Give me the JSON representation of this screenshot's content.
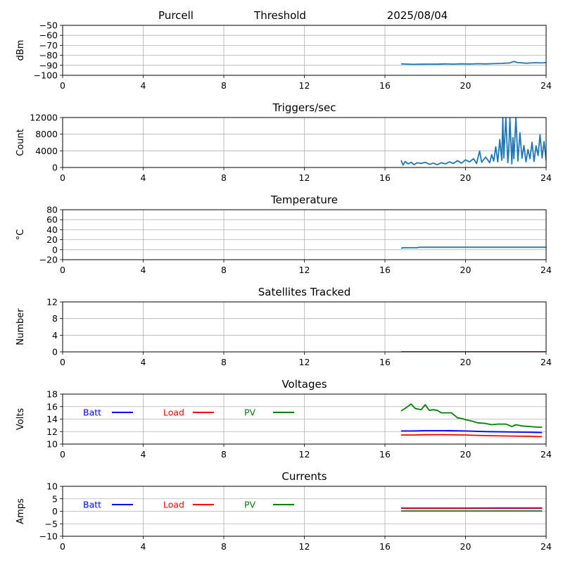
{
  "header": {
    "station": "Purcell",
    "mode": "Threshold",
    "date": "2025/08/04"
  },
  "chart_data": [
    {
      "id": "power",
      "type": "line",
      "title": "",
      "xlabel": "",
      "ylabel": "dBm",
      "xlim": [
        0,
        24
      ],
      "xticks": [
        "0",
        "4",
        "8",
        "12",
        "16",
        "20",
        "24"
      ],
      "ylim": [
        -100,
        -50
      ],
      "yticks": [
        "−100",
        "−90",
        "−80",
        "−70",
        "−60",
        "−50"
      ],
      "grid": true,
      "series": [
        {
          "color": "#1f77b4",
          "x": [
            16.8,
            17.0,
            17.4,
            17.8,
            18.2,
            18.6,
            19.0,
            19.4,
            19.8,
            20.2,
            20.6,
            21.0,
            21.4,
            21.8,
            22.2,
            22.4,
            22.6,
            22.8,
            23.0,
            23.4,
            23.8,
            24.0
          ],
          "y": [
            -88.5,
            -88.7,
            -89.0,
            -88.9,
            -88.8,
            -88.9,
            -88.6,
            -88.8,
            -88.5,
            -88.7,
            -88.4,
            -88.6,
            -88.3,
            -88.1,
            -87.6,
            -86.2,
            -87.3,
            -87.5,
            -87.9,
            -87.4,
            -87.6,
            -87.3
          ]
        }
      ]
    },
    {
      "id": "triggers",
      "type": "line",
      "title": "Triggers/sec",
      "xlabel": "",
      "ylabel": "Count",
      "xlim": [
        0,
        24
      ],
      "xticks": [
        "0",
        "4",
        "8",
        "12",
        "16",
        "20",
        "24"
      ],
      "ylim": [
        0,
        12500
      ],
      "yticks": [
        "0",
        "4000",
        "8000",
        "12000"
      ],
      "grid": true,
      "series": [
        {
          "color": "#1f77b4",
          "x": [
            16.8,
            16.9,
            17.0,
            17.15,
            17.3,
            17.45,
            17.6,
            17.8,
            18.0,
            18.2,
            18.4,
            18.6,
            18.8,
            19.0,
            19.2,
            19.4,
            19.6,
            19.8,
            20.0,
            20.2,
            20.4,
            20.55,
            20.7,
            20.8,
            21.0,
            21.2,
            21.3,
            21.4,
            21.5,
            21.6,
            21.7,
            21.8,
            21.85,
            21.9,
            22.0,
            22.1,
            22.15,
            22.2,
            22.3,
            22.35,
            22.4,
            22.5,
            22.6,
            22.7,
            22.8,
            22.9,
            23.0,
            23.1,
            23.2,
            23.3,
            23.4,
            23.5,
            23.6,
            23.7,
            23.8,
            23.9,
            24.0
          ],
          "y": [
            1800,
            600,
            1500,
            900,
            1300,
            700,
            1200,
            1000,
            1300,
            800,
            1100,
            700,
            1200,
            900,
            1400,
            1000,
            1700,
            1100,
            1900,
            1400,
            2200,
            1000,
            4100,
            1300,
            2600,
            1200,
            3200,
            1600,
            5200,
            1400,
            7000,
            1800,
            12500,
            2400,
            12500,
            1200,
            4200,
            12500,
            900,
            7500,
            2200,
            12500,
            1600,
            8700,
            2300,
            5500,
            1400,
            4500,
            2200,
            6300,
            1500,
            5400,
            3000,
            8200,
            2400,
            6500,
            1800
          ]
        }
      ]
    },
    {
      "id": "temperature",
      "type": "line",
      "title": "Temperature",
      "xlabel": "",
      "ylabel": "°C",
      "xlim": [
        0,
        24
      ],
      "xticks": [
        "0",
        "4",
        "8",
        "12",
        "16",
        "20",
        "24"
      ],
      "ylim": [
        -20,
        80
      ],
      "yticks": [
        "−20",
        "0",
        "20",
        "40",
        "60",
        "80"
      ],
      "grid": true,
      "series": [
        {
          "color": "#1f77b4",
          "x": [
            16.8,
            16.9,
            17.6,
            17.7,
            24.0
          ],
          "y": [
            3,
            4,
            4,
            5,
            5
          ]
        }
      ]
    },
    {
      "id": "satellites",
      "type": "line",
      "title": "Satellites Tracked",
      "xlabel": "",
      "ylabel": "Number",
      "xlim": [
        0,
        24
      ],
      "xticks": [
        "0",
        "4",
        "8",
        "12",
        "16",
        "20",
        "24"
      ],
      "ylim": [
        0,
        12
      ],
      "yticks": [
        "0",
        "4",
        "8",
        "12"
      ],
      "grid": true,
      "series": [
        {
          "color": "#1f77b4",
          "x": [
            16.8,
            24.0
          ],
          "y": [
            0,
            0
          ]
        },
        {
          "color": "#008000",
          "x": [
            16.8,
            24.0
          ],
          "y": [
            0,
            0
          ]
        }
      ]
    },
    {
      "id": "voltages",
      "type": "line",
      "title": "Voltages",
      "xlabel": "",
      "ylabel": "Volts",
      "xlim": [
        0,
        24
      ],
      "xticks": [
        "0",
        "4",
        "8",
        "12",
        "16",
        "20",
        "24"
      ],
      "ylim": [
        10,
        18
      ],
      "yticks": [
        "10",
        "12",
        "14",
        "16",
        "18"
      ],
      "grid": true,
      "legend": "top-left",
      "series": [
        {
          "name": "Batt",
          "color": "#0000ff",
          "x": [
            16.8,
            17.4,
            18.0,
            19.0,
            20.0,
            21.0,
            22.0,
            23.0,
            23.8
          ],
          "y": [
            12.1,
            12.1,
            12.15,
            12.15,
            12.1,
            12.0,
            11.95,
            11.9,
            11.85
          ]
        },
        {
          "name": "Load",
          "color": "#ff0000",
          "x": [
            16.8,
            17.4,
            18.0,
            19.0,
            20.0,
            21.0,
            22.0,
            23.0,
            23.8
          ],
          "y": [
            11.45,
            11.45,
            11.5,
            11.5,
            11.45,
            11.35,
            11.3,
            11.25,
            11.2
          ]
        },
        {
          "name": "PV",
          "color": "#008000",
          "x": [
            16.8,
            17.0,
            17.3,
            17.5,
            17.8,
            18.0,
            18.2,
            18.4,
            18.6,
            18.8,
            19.0,
            19.3,
            19.6,
            19.8,
            20.0,
            20.3,
            20.6,
            21.0,
            21.3,
            21.6,
            22.0,
            22.3,
            22.5,
            22.8,
            23.2,
            23.6,
            23.8
          ],
          "y": [
            15.3,
            15.7,
            16.4,
            15.7,
            15.5,
            16.3,
            15.4,
            15.5,
            15.4,
            15.0,
            15.0,
            15.0,
            14.2,
            14.1,
            13.9,
            13.7,
            13.4,
            13.3,
            13.1,
            13.2,
            13.2,
            12.8,
            13.1,
            12.9,
            12.8,
            12.7,
            12.7
          ]
        }
      ]
    },
    {
      "id": "currents",
      "type": "line",
      "title": "Currents",
      "xlabel": "",
      "ylabel": "Amps",
      "xlim": [
        0,
        24
      ],
      "xticks": [
        "0",
        "4",
        "8",
        "12",
        "16",
        "20",
        "24"
      ],
      "ylim": [
        -10,
        10
      ],
      "yticks": [
        "−10",
        "−5",
        "0",
        "5",
        "10"
      ],
      "grid": true,
      "legend": "top-left",
      "series": [
        {
          "name": "Batt",
          "color": "#0000ff",
          "x": [
            16.8,
            23.8
          ],
          "y": [
            1.2,
            1.2
          ]
        },
        {
          "name": "Load",
          "color": "#ff0000",
          "x": [
            16.8,
            18.0,
            20.0,
            22.0,
            23.8
          ],
          "y": [
            1.3,
            1.3,
            1.3,
            1.35,
            1.35
          ]
        },
        {
          "name": "PV",
          "color": "#008000",
          "x": [
            16.8,
            23.8
          ],
          "y": [
            0.1,
            0.1
          ]
        }
      ]
    }
  ]
}
